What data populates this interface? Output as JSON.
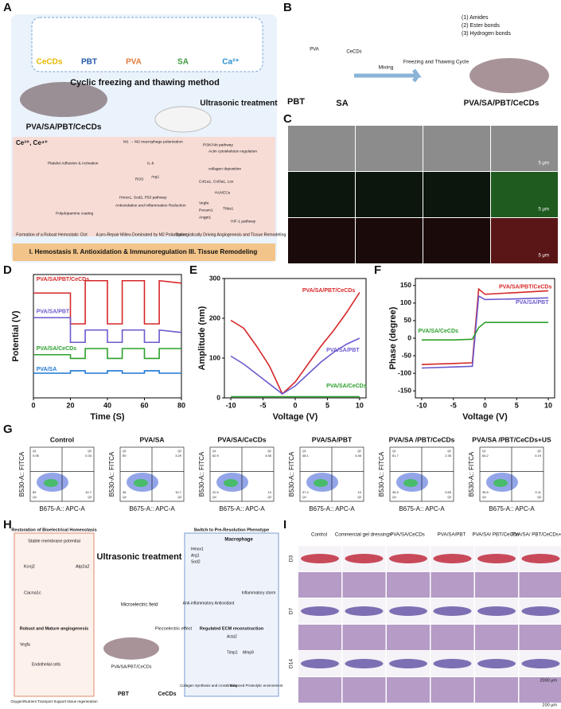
{
  "panel_labels": [
    "A",
    "B",
    "C",
    "D",
    "E",
    "F",
    "G",
    "H",
    "I"
  ],
  "panel_a": {
    "materials": [
      "CeCDs",
      "PBT",
      "PVA",
      "SA",
      "Ca²⁺"
    ],
    "method": "Cyclic freezing and thawing method",
    "ultrasound": "Ultrasonic treatment",
    "product": "PVA/SA/PBT/CeCDs",
    "ions": "Ce³⁺, Ce⁴⁺",
    "details": [
      "Platelet Adhesion & Activation",
      "Polydopamine coating",
      "M1 → M2 macrophage polarization",
      "ROS",
      "IL-6",
      "Arg1",
      "Hmox1, Sod2, P53 pathway",
      "Antioxidation and Inflammation Reduction",
      "PI3K/Akt pathway",
      "Actin cytoskeleton regulation",
      "collagen deposition",
      "Col1a1, Col3a1, Lox",
      "HUVECs",
      "Vegfa",
      "Pecam1",
      "Angpt1",
      "Thbs1",
      "HIF-1 pathway"
    ],
    "captions": [
      "Formation of a Robust Hemostatic Clot",
      "A pro-Repair Milieu Dominated by M2 Polarization",
      "Synergistically Driving Angiogenesis and Tissue Remodeling"
    ],
    "banner": "I. Hemostasis   II. Antioxidation & Immunoregulation   III. Tissue Remodeling"
  },
  "panel_b": {
    "components": [
      "PVA",
      "CeCDs",
      "PBT",
      "SA"
    ],
    "step": "Mixing",
    "process": "Freezing and Thawing Cycle",
    "bonds": [
      "(1) Amides",
      "(2) Ester bonds",
      "(3) Hydrogen bonds"
    ],
    "product": "PVA/SA/PBT/CeCDs"
  },
  "panel_c": {
    "scale_bars": [
      "5 μm",
      "5 μm",
      "5 μm"
    ]
  },
  "chart_data": [
    {
      "type": "line",
      "xlabel": "Time (S)",
      "ylabel": "Potential (V)",
      "x": [
        0,
        20,
        20,
        28,
        28,
        40,
        40,
        48,
        48,
        60,
        60,
        68,
        68,
        80
      ],
      "xlim": [
        0,
        80
      ],
      "xticks": [
        0,
        20,
        40,
        60,
        80
      ],
      "ylim": [
        0,
        10
      ],
      "series": [
        {
          "name": "PVA/SA/PBT/CeCDs",
          "color": "#d62728",
          "values": [
            8.5,
            8.5,
            6,
            6,
            9.5,
            9.5,
            6,
            6,
            9.5,
            9.5,
            6,
            6,
            9.5,
            9.3
          ]
        },
        {
          "name": "PVA/SA/PBT",
          "color": "#6a5acd",
          "values": [
            6.5,
            6.5,
            4.5,
            4.5,
            5.5,
            5.5,
            4.5,
            4.5,
            5.5,
            5.5,
            4.5,
            4.5,
            5.5,
            5.3
          ]
        },
        {
          "name": "PVA/SA/CeCDs",
          "color": "#2ca02c",
          "values": [
            3.5,
            3.5,
            3.2,
            3.2,
            4,
            4,
            3.2,
            3.2,
            4,
            4,
            3.2,
            3.2,
            4,
            4
          ]
        },
        {
          "name": "PVA/SA",
          "color": "#1f77d4",
          "values": [
            2,
            2,
            2.2,
            2.2,
            2,
            2,
            2.2,
            2.2,
            2,
            2,
            2.2,
            2.2,
            2,
            2
          ]
        }
      ]
    },
    {
      "type": "line",
      "xlabel": "Voltage (V)",
      "ylabel": "Amplitude (nm)",
      "x": [
        -10,
        -8,
        -6,
        -4,
        -2,
        0,
        2,
        4,
        6,
        8,
        10
      ],
      "xlim": [
        -11,
        11
      ],
      "xticks": [
        -10,
        -5,
        0,
        5,
        10
      ],
      "ylim": [
        0,
        300
      ],
      "yticks": [
        0,
        100,
        200,
        300
      ],
      "series": [
        {
          "name": "PVA/SA/PBT/CeCDs",
          "color": "#d62728",
          "values": [
            195,
            175,
            130,
            80,
            10,
            40,
            85,
            130,
            170,
            215,
            265
          ]
        },
        {
          "name": "PVA/SA/PBT",
          "color": "#6a5acd",
          "values": [
            105,
            85,
            60,
            35,
            10,
            30,
            60,
            90,
            115,
            135,
            150
          ]
        },
        {
          "name": "PVA/SA/CeCDs",
          "color": "#2ca02c",
          "values": [
            3,
            3,
            3,
            3,
            3,
            3,
            3,
            3,
            3,
            3,
            3
          ]
        }
      ]
    },
    {
      "type": "line",
      "xlabel": "Voltage (V)",
      "ylabel": "Phase (degree)",
      "x": [
        -10,
        -5,
        -2,
        -1,
        0,
        5,
        10
      ],
      "xlim": [
        -11,
        11
      ],
      "xticks": [
        -10,
        -5,
        0,
        5,
        10
      ],
      "ylim": [
        -170,
        170
      ],
      "yticks": [
        -150,
        -100,
        -50,
        0,
        50,
        100,
        150
      ],
      "series": [
        {
          "name": "PVA/SA/PBT/CeCDs",
          "color": "#d62728",
          "values": [
            -75,
            -72,
            -70,
            140,
            125,
            130,
            135
          ]
        },
        {
          "name": "PVA/SA/PBT",
          "color": "#6a5acd",
          "values": [
            -85,
            -82,
            -80,
            120,
            110,
            112,
            115
          ]
        },
        {
          "name": "PVA/SA/CeCDs",
          "color": "#2ca02c",
          "values": [
            -5,
            -5,
            -3,
            30,
            45,
            45,
            45
          ]
        }
      ]
    }
  ],
  "panel_g": {
    "xlabel": "B675-A:: APC-A",
    "ylabel": "B530-A:: FITCA",
    "quadrant_names": [
      "Q1",
      "Q2",
      "Q4",
      "Q3"
    ],
    "panels": [
      {
        "title": "Control",
        "quadrants": [
          0.05,
          0.34,
          89.0,
          10.7
        ]
      },
      {
        "title": "PVA/SA",
        "quadrants": [
          50.0,
          3.29,
          36.0,
          10.7
        ]
      },
      {
        "title": "PVA/SA/CeCDs",
        "quadrants": [
          62.9,
          4.66,
          22.5,
          10.0
        ]
      },
      {
        "title": "PVA/SA/PBT",
        "quadrants": [
          48.1,
          4.46,
          37.4,
          10.0
        ]
      },
      {
        "title": "PVA/SA /PBT/CeCDs",
        "quadrants": [
          61.7,
          2.35,
          35.3,
          0.65
        ]
      },
      {
        "title": "PVA/SA /PBT/CeCDs+US",
        "quadrants": [
          64.2,
          0.19,
          35.5,
          0.11
        ]
      }
    ]
  },
  "panel_h": {
    "labels": [
      "Restoration of Bioelectrical Homeostasis",
      "Stable membrane potential",
      "Robust and Mature angiogenesis",
      "Ultrasonic treatment",
      "Microelectric field",
      "Piezoelectric effect",
      "PVA/SA/PBT/CeCDs",
      "PBT",
      "CeCDs",
      "Switch to Pre-Resolution Phenotype",
      "Macrophage",
      "Anti-inflammatory Antioxidant",
      "Inflammatory storm",
      "Regulated ECM reconstruction",
      "Collagen Synthesis and crosslinking",
      "Balanced Proteolytic environment",
      "Oxygen/Nutrient Transport Support tissue regeneration",
      "Kcnj2",
      "Atp2a2",
      "Cacna1c",
      "Vegfa",
      "Endothelial cells",
      "Hmox1",
      "Arg1",
      "Sod2",
      "Acta2",
      "Timp1",
      "Mmp9"
    ]
  },
  "panel_i": {
    "columns": [
      "Control",
      "Commercial gel dressings",
      "PVA/SA/CeCDs",
      "PVA/SA/PBT",
      "PVA/SA/ PBT/CeCDs",
      "PVA/SA/ PBT/CeCDs+US"
    ],
    "rows": [
      "D3",
      "D7",
      "D14"
    ],
    "scale_bars": [
      "2000 μm",
      "200 μm"
    ]
  }
}
